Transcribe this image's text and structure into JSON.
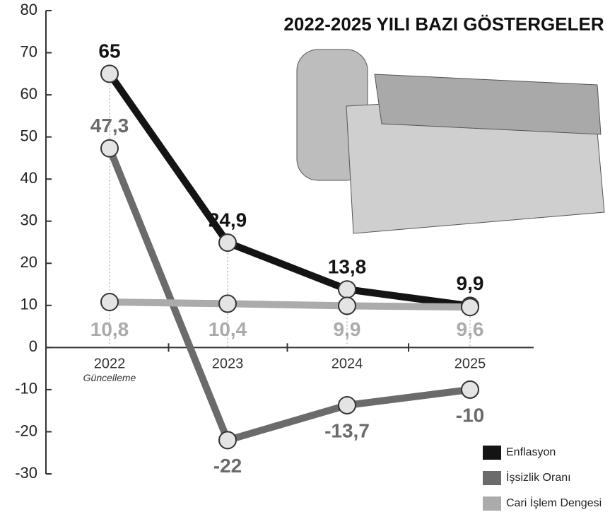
{
  "chart_data": {
    "type": "line",
    "title": "2022-2025 YILI BAZI GÖSTERGELER",
    "annotation": "Güncelleme",
    "categories": [
      "2022",
      "2023",
      "2024",
      "2025"
    ],
    "series": [
      {
        "name": "Enflasyon",
        "color": "#141414",
        "values": [
          65,
          24.9,
          13.8,
          9.9
        ],
        "value_labels": [
          "65",
          "24,9",
          "13,8",
          "9,9"
        ]
      },
      {
        "name": "İşsizlik Oranı",
        "color": "#6b6b6b",
        "values": [
          47.3,
          -22,
          -13.7,
          -10
        ],
        "value_labels": [
          "47,3",
          "-22",
          "-13,7",
          "-10"
        ]
      },
      {
        "name": "Cari İşlem Dengesi",
        "color": "#ababab",
        "values": [
          10.8,
          10.4,
          9.9,
          9.6
        ],
        "value_labels": [
          "10,8",
          "10,4",
          "9,9",
          "9,6"
        ]
      }
    ],
    "ylim": [
      -30,
      80
    ],
    "yticks": [
      -30,
      -20,
      -10,
      0,
      10,
      20,
      30,
      40,
      50,
      60,
      70,
      80
    ],
    "legend": "bottom-right"
  }
}
